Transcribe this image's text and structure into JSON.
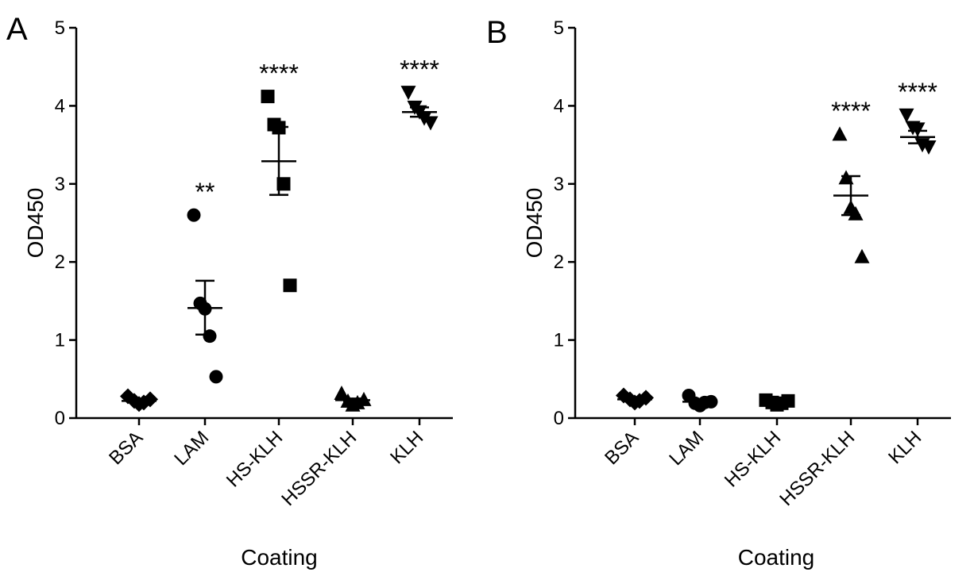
{
  "chart_data": [
    {
      "type": "scatter",
      "panel": "A",
      "xlabel": "Coating",
      "ylabel": "OD450",
      "ylim": [
        0,
        5
      ],
      "yticks": [
        "0",
        "1",
        "2",
        "3",
        "4",
        "5"
      ],
      "grid": false,
      "categories": [
        "BSA",
        "LAM",
        "HS-KLH",
        "HSSR-KLH",
        "KLH"
      ],
      "groups": [
        {
          "category": "BSA",
          "marker": "diamond",
          "values": [
            0.28,
            0.22,
            0.18,
            0.2,
            0.24
          ],
          "mean": 0.22,
          "sem_low": 0.2,
          "sem_high": 0.24,
          "significance": ""
        },
        {
          "category": "LAM",
          "marker": "circle",
          "values": [
            2.6,
            1.47,
            1.4,
            1.05,
            0.53
          ],
          "mean": 1.41,
          "sem_low": 1.07,
          "sem_high": 1.76,
          "significance": "**"
        },
        {
          "category": "HS-KLH",
          "marker": "square",
          "values": [
            4.12,
            3.76,
            3.72,
            3.0,
            1.7
          ],
          "mean": 3.29,
          "sem_low": 2.86,
          "sem_high": 3.73,
          "significance": "****"
        },
        {
          "category": "HSSR-KLH",
          "marker": "triangle-up",
          "values": [
            0.32,
            0.22,
            0.17,
            0.2,
            0.24
          ],
          "mean": 0.23,
          "sem_low": 0.21,
          "sem_high": 0.25,
          "significance": ""
        },
        {
          "category": "KLH",
          "marker": "triangle-down",
          "values": [
            4.17,
            3.98,
            3.92,
            3.84,
            3.78
          ],
          "mean": 3.92,
          "sem_low": 3.86,
          "sem_high": 3.98,
          "significance": "****"
        }
      ]
    },
    {
      "type": "scatter",
      "panel": "B",
      "xlabel": "Coating",
      "ylabel": "OD450",
      "ylim": [
        0,
        5
      ],
      "yticks": [
        "0",
        "1",
        "2",
        "3",
        "4",
        "5"
      ],
      "grid": false,
      "categories": [
        "BSA",
        "LAM",
        "HS-KLH",
        "HSSR-KLH",
        "KLH"
      ],
      "groups": [
        {
          "category": "BSA",
          "marker": "diamond",
          "values": [
            0.29,
            0.24,
            0.2,
            0.22,
            0.26
          ],
          "mean": 0.24,
          "sem_low": 0.22,
          "sem_high": 0.26,
          "significance": ""
        },
        {
          "category": "LAM",
          "marker": "circle",
          "values": [
            0.29,
            0.19,
            0.16,
            0.2,
            0.21
          ],
          "mean": 0.21,
          "sem_low": 0.19,
          "sem_high": 0.23,
          "significance": ""
        },
        {
          "category": "HS-KLH",
          "marker": "square",
          "values": [
            0.23,
            0.2,
            0.17,
            0.19,
            0.22
          ],
          "mean": 0.2,
          "sem_low": 0.19,
          "sem_high": 0.21,
          "significance": ""
        },
        {
          "category": "HSSR-KLH",
          "marker": "triangle-up",
          "values": [
            3.64,
            3.08,
            2.7,
            2.62,
            2.07
          ],
          "mean": 2.85,
          "sem_low": 2.6,
          "sem_high": 3.1,
          "significance": "****"
        },
        {
          "category": "KLH",
          "marker": "triangle-down",
          "values": [
            3.88,
            3.72,
            3.7,
            3.5,
            3.47
          ],
          "mean": 3.6,
          "sem_low": 3.52,
          "sem_high": 3.68,
          "significance": "****"
        }
      ]
    }
  ]
}
